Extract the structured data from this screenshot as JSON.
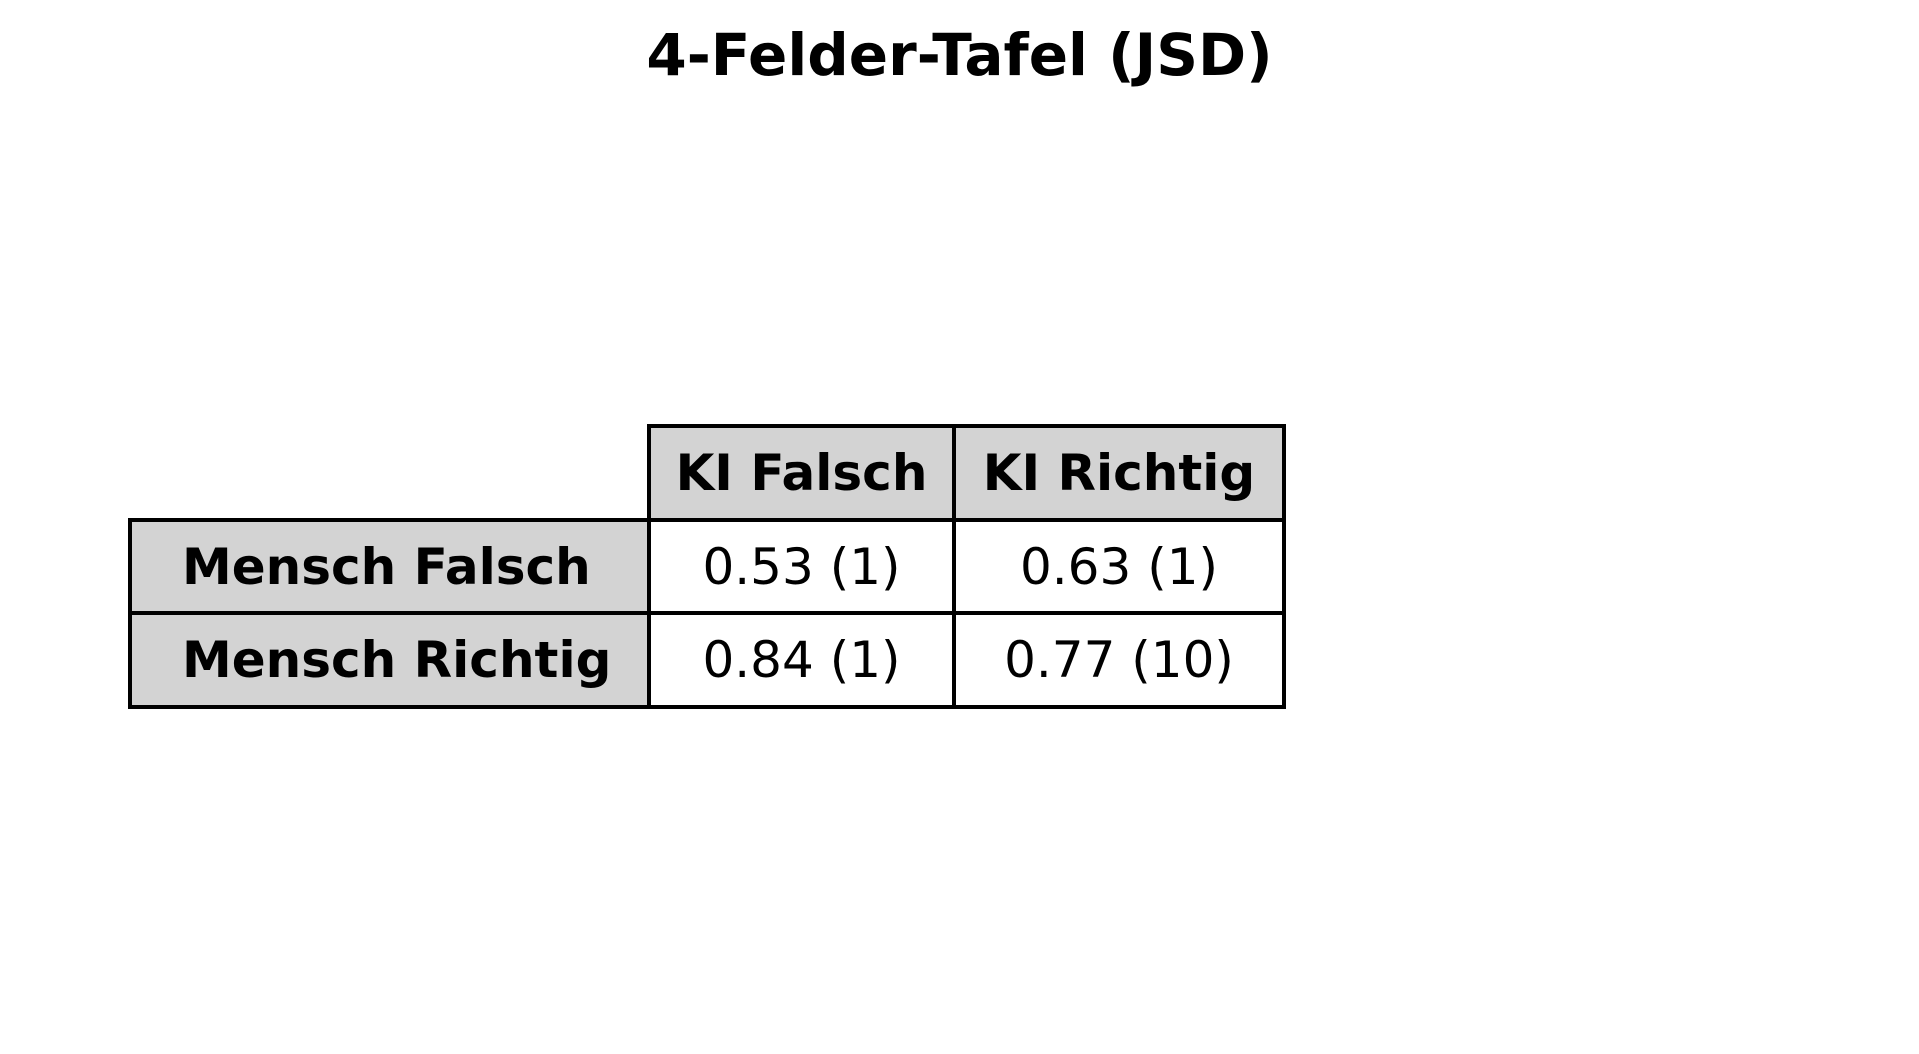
{
  "chart_data": {
    "type": "table",
    "title": "4-Felder-Tafel (JSD)",
    "columns": [
      "KI Falsch",
      "KI Richtig"
    ],
    "rows": [
      {
        "label": "Mensch Falsch",
        "cells": [
          "0.53 (1)",
          "0.63 (1)"
        ]
      },
      {
        "label": "Mensch Richtig",
        "cells": [
          "0.84 (1)",
          "0.77 (10)"
        ]
      }
    ]
  },
  "colors": {
    "header_background": "#d3d3d3",
    "cell_background": "#ffffff",
    "border": "#000000"
  }
}
